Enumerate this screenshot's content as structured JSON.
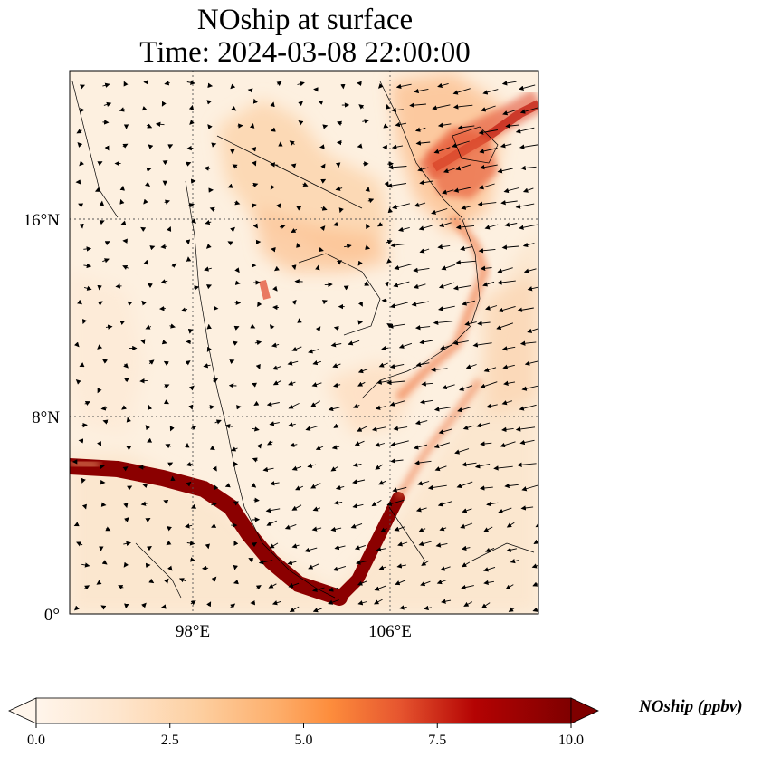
{
  "title": {
    "line1": "NOship at surface",
    "line2": "Time: 2024-03-08 22:00:00"
  },
  "map": {
    "variable": "NOship",
    "level": "surface",
    "time": "2024-03-08 22:00:00",
    "lat_ticks": [
      "16°N",
      "8°N",
      "0°"
    ],
    "lon_ticks": [
      "98°E",
      "106°E"
    ],
    "lat_tick_values": [
      16,
      8,
      0
    ],
    "lon_tick_values": [
      98,
      106
    ],
    "gridlines": true,
    "vectors": "wind arrows"
  },
  "colorbar": {
    "label": "NOship (ppbv)",
    "ticks": [
      "0.0",
      "2.5",
      "5.0",
      "7.5",
      "10.0"
    ],
    "tick_values": [
      0,
      2.5,
      5,
      7.5,
      10
    ],
    "min": 0,
    "max": 10,
    "extend": "both",
    "colormap": [
      "#fff5eb",
      "#fee6ce",
      "#fdd0a2",
      "#fdae6b",
      "#fd8d3c",
      "#f16913",
      "#d94801",
      "#a60000",
      "#7f0000"
    ]
  }
}
